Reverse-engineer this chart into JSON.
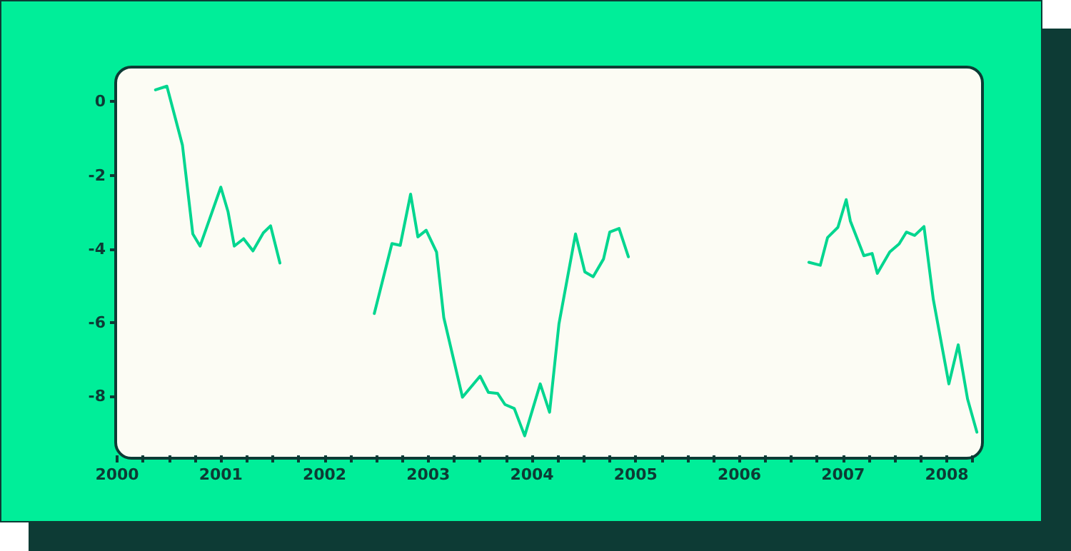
{
  "chart_data": {
    "type": "line",
    "x": [
      2000.37,
      2000.48,
      2000.63,
      2000.73,
      2000.8,
      2001.0,
      2001.07,
      2001.13,
      2001.22,
      2001.31,
      2001.41,
      2001.48,
      2001.57,
      2002.0,
      2002.48,
      2002.65,
      2002.73,
      2002.83,
      2002.9,
      2002.98,
      2003.08,
      2003.15,
      2003.33,
      2003.5,
      2003.58,
      2003.67,
      2003.74,
      2003.83,
      2003.93,
      2004.08,
      2004.17,
      2004.26,
      2004.42,
      2004.51,
      2004.59,
      2004.69,
      2004.75,
      2004.84,
      2004.93,
      2005.8,
      2006.67,
      2006.78,
      2006.85,
      2006.95,
      2007.03,
      2007.07,
      2007.2,
      2007.28,
      2007.33,
      2007.45,
      2007.54,
      2007.61,
      2007.69,
      2007.78,
      2007.87,
      2008.02,
      2008.11,
      2008.2,
      2008.29
    ],
    "series": [
      {
        "color": "#00d68f",
        "values": [
          0.32,
          0.42,
          -1.18,
          -3.59,
          -3.92,
          -2.32,
          -2.99,
          -3.92,
          -3.72,
          -4.05,
          -3.56,
          -3.37,
          -4.38,
          null,
          -5.75,
          -3.85,
          -3.9,
          -2.51,
          -3.67,
          -3.49,
          -4.08,
          -5.86,
          -8.02,
          -7.45,
          -7.89,
          -7.92,
          -8.22,
          -8.33,
          -9.07,
          -7.66,
          -8.43,
          -6.04,
          -3.59,
          -4.62,
          -4.75,
          -4.27,
          -3.54,
          -3.44,
          -4.21,
          null,
          -4.36,
          -4.44,
          -3.69,
          -3.41,
          -2.66,
          -3.24,
          -4.18,
          -4.12,
          -4.66,
          -4.08,
          -3.86,
          -3.54,
          -3.63,
          -3.39,
          -5.37,
          -7.66,
          -6.6,
          -8.07,
          -8.97
        ]
      }
    ],
    "xlim": [
      2000,
      2008.33
    ],
    "xticks": [
      2000,
      {
        "value": 2000.25,
        "label": null
      },
      {
        "value": 2000.5,
        "label": null
      },
      {
        "value": 2000.75,
        "label": null
      },
      2001,
      {
        "value": 2001.25,
        "label": null
      },
      {
        "value": 2001.5,
        "label": null
      },
      {
        "value": 2001.75,
        "label": null
      },
      2002,
      {
        "value": 2002.25,
        "label": null
      },
      {
        "value": 2002.5,
        "label": null
      },
      {
        "value": 2002.75,
        "label": null
      },
      2003,
      {
        "value": 2003.25,
        "label": null
      },
      {
        "value": 2003.5,
        "label": null
      },
      {
        "value": 2003.75,
        "label": null
      },
      2004,
      {
        "value": 2004.25,
        "label": null
      },
      {
        "value": 2004.5,
        "label": null
      },
      {
        "value": 2004.75,
        "label": null
      },
      2005,
      {
        "value": 2005.25,
        "label": null
      },
      {
        "value": 2005.5,
        "label": null
      },
      {
        "value": 2005.75,
        "label": null
      },
      2006,
      {
        "value": 2006.25,
        "label": null
      },
      {
        "value": 2006.5,
        "label": null
      },
      {
        "value": 2006.75,
        "label": null
      },
      2007,
      {
        "value": 2007.25,
        "label": null
      },
      {
        "value": 2007.5,
        "label": null
      },
      {
        "value": 2007.75,
        "label": null
      },
      2008,
      {
        "value": 2008.25,
        "label": null
      }
    ],
    "ylim": [
      -9.6,
      0.9
    ],
    "yticks": [
      0,
      -2,
      -4,
      -6,
      -8
    ],
    "grid": false,
    "marker": "none",
    "line_style": "solid"
  }
}
